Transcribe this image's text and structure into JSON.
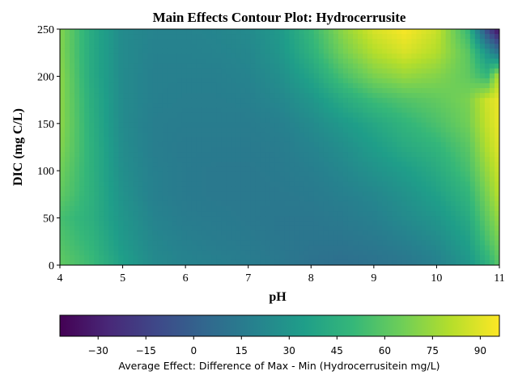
{
  "chart_data": {
    "type": "heatmap",
    "title": "Main Effects Contour Plot: Hydrocerrusite",
    "xlabel": "pH",
    "ylabel": "DIC (mg C/L)",
    "xlim": [
      4,
      11
    ],
    "ylim": [
      0,
      250
    ],
    "x_ticks": [
      "4",
      "5",
      "6",
      "7",
      "8",
      "9",
      "10",
      "11"
    ],
    "y_ticks": [
      "0",
      "50",
      "100",
      "150",
      "200",
      "250"
    ],
    "colorscale": "viridis",
    "colorbar": {
      "label": "Average Effect: Difference of Max - Min (Hydrocerrusitein mg/L)",
      "range": [
        -42,
        96
      ],
      "ticks": [
        "−30",
        "−15",
        "0",
        "15",
        "30",
        "45",
        "60",
        "75",
        "90"
      ],
      "tick_values": [
        -30,
        -15,
        0,
        15,
        30,
        45,
        60,
        75,
        90
      ]
    },
    "x": [
      4,
      4.5,
      5,
      5.5,
      6,
      6.5,
      7,
      7.5,
      8,
      8.5,
      9,
      9.5,
      10,
      10.5,
      10.8,
      11
    ],
    "y": [
      0,
      25,
      50,
      75,
      100,
      125,
      150,
      175,
      200,
      225,
      250
    ],
    "z": [
      [
        62,
        52,
        36,
        24,
        20,
        18,
        16,
        14,
        10,
        8,
        10,
        12,
        18,
        30,
        45,
        60
      ],
      [
        58,
        48,
        32,
        22,
        18,
        16,
        15,
        13,
        12,
        12,
        14,
        18,
        24,
        36,
        55,
        68
      ],
      [
        55,
        45,
        30,
        20,
        16,
        15,
        14,
        13,
        13,
        15,
        18,
        24,
        30,
        42,
        62,
        75
      ],
      [
        62,
        46,
        28,
        18,
        15,
        14,
        14,
        14,
        15,
        18,
        22,
        28,
        36,
        48,
        68,
        82
      ],
      [
        66,
        46,
        26,
        18,
        15,
        14,
        14,
        15,
        17,
        22,
        28,
        34,
        42,
        55,
        74,
        86
      ],
      [
        70,
        46,
        25,
        17,
        15,
        15,
        15,
        16,
        20,
        26,
        34,
        42,
        48,
        60,
        80,
        90
      ],
      [
        72,
        45,
        24,
        17,
        16,
        16,
        16,
        18,
        24,
        32,
        40,
        48,
        56,
        66,
        84,
        92
      ],
      [
        72,
        44,
        24,
        18,
        17,
        17,
        18,
        22,
        30,
        42,
        52,
        58,
        62,
        68,
        86,
        92
      ],
      [
        72,
        42,
        24,
        18,
        18,
        18,
        20,
        26,
        38,
        55,
        68,
        74,
        70,
        62,
        50,
        82
      ],
      [
        70,
        42,
        24,
        19,
        19,
        20,
        22,
        30,
        46,
        66,
        80,
        88,
        80,
        60,
        30,
        10
      ],
      [
        70,
        42,
        24,
        20,
        20,
        21,
        24,
        32,
        50,
        72,
        88,
        95,
        85,
        50,
        -10,
        -40
      ]
    ]
  }
}
